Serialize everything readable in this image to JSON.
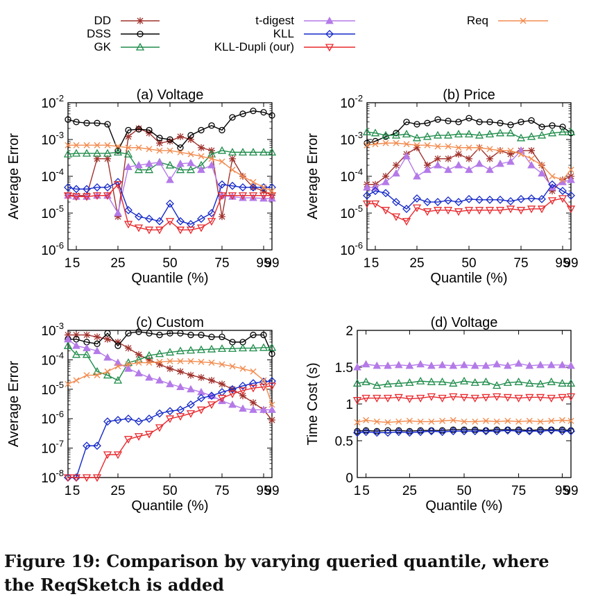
{
  "caption": "Figure 19: Comparison by varying queried quantile, where the ReqSketch is added",
  "legend": [
    {
      "name": "DD",
      "color": "#a0322d",
      "marker": "star"
    },
    {
      "name": "DSS",
      "color": "#000000",
      "marker": "circle"
    },
    {
      "name": "GK",
      "color": "#1e8c4a",
      "marker": "triangle-up"
    },
    {
      "name": "t-digest",
      "color": "#b47ae8",
      "marker": "triangle-up-filled"
    },
    {
      "name": "KLL",
      "color": "#1428c8",
      "marker": "diamond"
    },
    {
      "name": "KLL-Dupli (our)",
      "color": "#e8282d",
      "marker": "triangle-down"
    },
    {
      "name": "Req",
      "color": "#f28c50",
      "marker": "x"
    }
  ],
  "chart_data": [
    {
      "type": "line",
      "title": "(a) Voltage",
      "xlabel": "Quantile (%)",
      "ylabel": "Average Error",
      "yscale": "log",
      "ylim": [
        1e-06,
        0.01
      ],
      "xlim": [
        1,
        99
      ],
      "xticks": [
        1,
        5,
        25,
        50,
        75,
        95,
        99
      ],
      "yticks": [
        "10-6",
        "10-5",
        "10-4",
        "10-3",
        "10-2"
      ],
      "x": [
        1,
        5,
        10,
        15,
        20,
        25,
        30,
        35,
        40,
        45,
        50,
        55,
        60,
        65,
        70,
        75,
        80,
        85,
        90,
        95,
        99
      ],
      "series": [
        {
          "name": "DD",
          "values": [
            3e-05,
            3e-05,
            3e-05,
            0.0003,
            0.0003,
            8e-06,
            0.0012,
            0.002,
            0.0015,
            0.0008,
            0.0009,
            0.0012,
            0.001,
            0.0006,
            0.0005,
            8e-06,
            0.0003,
            0.0001,
            5e-05,
            4e-05,
            3e-05
          ]
        },
        {
          "name": "DSS",
          "values": [
            0.0035,
            0.003,
            0.0028,
            0.0028,
            0.0026,
            0.0005,
            0.0018,
            0.0019,
            0.0018,
            0.0011,
            0.001,
            0.0006,
            0.0013,
            0.0018,
            0.0024,
            0.0018,
            0.004,
            0.005,
            0.006,
            0.0055,
            0.0045
          ]
        },
        {
          "name": "GK",
          "values": [
            0.0004,
            0.00042,
            0.00042,
            0.00042,
            0.00042,
            0.00045,
            0.0004,
            0.00015,
            0.00015,
            0.00024,
            0.0002,
            0.00015,
            0.00015,
            0.0002,
            0.0004,
            0.0005,
            0.00045,
            0.00045,
            0.00045,
            0.00045,
            0.00045
          ]
        },
        {
          "name": "t-digest",
          "values": [
            3e-05,
            2.8e-05,
            2.8e-05,
            3e-05,
            3e-05,
            1e-05,
            0.00018,
            0.0002,
            0.00022,
            0.00024,
            8e-05,
            0.00022,
            0.00023,
            0.00015,
            0.0002,
            3e-05,
            2.8e-05,
            2.6e-05,
            2.6e-05,
            2.5e-05,
            2.5e-05
          ]
        },
        {
          "name": "KLL",
          "values": [
            5e-05,
            4.5e-05,
            4.5e-05,
            5e-05,
            5e-05,
            7e-05,
            1.2e-05,
            8e-06,
            7e-06,
            6e-06,
            1.8e-05,
            6e-06,
            5e-06,
            7e-06,
            1e-05,
            6e-05,
            5.5e-05,
            5e-05,
            5e-05,
            5e-05,
            5e-05
          ]
        },
        {
          "name": "KLL-Dupli (our)",
          "values": [
            3e-05,
            2.8e-05,
            2.8e-05,
            3e-05,
            3e-05,
            6e-05,
            5e-06,
            4e-06,
            3.5e-06,
            3.5e-06,
            6e-06,
            3.5e-06,
            3.5e-06,
            4e-06,
            6e-06,
            3e-05,
            3e-05,
            3e-05,
            3e-05,
            3e-05,
            3e-05
          ]
        },
        {
          "name": "Req",
          "values": [
            0.0007,
            0.0007,
            0.0007,
            0.0007,
            0.0007,
            0.00065,
            0.0006,
            0.0006,
            0.00055,
            0.0005,
            0.0005,
            0.00045,
            0.0004,
            0.00035,
            0.0003,
            0.00025,
            0.00015,
            0.0001,
            7e-05,
            5e-05,
            4e-05
          ]
        }
      ]
    },
    {
      "type": "line",
      "title": "(b) Price",
      "xlabel": "Quantile (%)",
      "ylabel": "Average Error",
      "yscale": "log",
      "ylim": [
        1e-06,
        0.01
      ],
      "xlim": [
        1,
        99
      ],
      "xticks": [
        1,
        5,
        25,
        50,
        75,
        95,
        99
      ],
      "yticks": [
        "10-6",
        "10-5",
        "10-4",
        "10-3",
        "10-2"
      ],
      "x": [
        1,
        5,
        10,
        15,
        20,
        25,
        30,
        35,
        40,
        45,
        50,
        55,
        60,
        65,
        70,
        75,
        80,
        85,
        90,
        95,
        99
      ],
      "series": [
        {
          "name": "DD",
          "values": [
            6e-05,
            6e-05,
            0.0001,
            0.0002,
            0.0004,
            0.0006,
            0.0002,
            0.0003,
            0.0003,
            0.0004,
            0.0003,
            0.0006,
            0.0003,
            0.0005,
            0.0004,
            0.0005,
            0.0005,
            0.0002,
            4e-05,
            8e-05,
            0.0001
          ]
        },
        {
          "name": "DSS",
          "values": [
            0.0008,
            0.0009,
            0.0012,
            0.0015,
            0.003,
            0.0026,
            0.0028,
            0.0035,
            0.0032,
            0.003,
            0.0038,
            0.003,
            0.003,
            0.0028,
            0.0025,
            0.003,
            0.0033,
            0.0022,
            0.0024,
            0.0022,
            0.0015
          ]
        },
        {
          "name": "GK",
          "values": [
            0.0016,
            0.0015,
            0.0013,
            0.0013,
            0.0014,
            0.0011,
            0.0012,
            0.0013,
            0.0013,
            0.0014,
            0.0014,
            0.0013,
            0.0014,
            0.0015,
            0.0015,
            0.0011,
            0.0012,
            0.0013,
            0.0015,
            0.0016,
            0.0016
          ]
        },
        {
          "name": "t-digest",
          "values": [
            5e-05,
            5e-05,
            7e-05,
            0.00012,
            0.00035,
            0.0001,
            0.00015,
            0.0002,
            0.00015,
            0.0002,
            0.00015,
            0.00022,
            0.00015,
            0.00022,
            0.00025,
            0.0005,
            0.0002,
            0.00012,
            5e-05,
            7e-05,
            8e-05
          ]
        },
        {
          "name": "KLL",
          "values": [
            3e-05,
            4e-05,
            3.5e-05,
            2e-05,
            1.3e-05,
            2.5e-05,
            2e-05,
            2e-05,
            2.2e-05,
            2e-05,
            2.4e-05,
            2.3e-05,
            2.3e-05,
            2.3e-05,
            2.1e-05,
            2.4e-05,
            2.5e-05,
            2.4e-05,
            6e-05,
            4e-05,
            3e-05
          ]
        },
        {
          "name": "KLL-Dupli (our)",
          "values": [
            1.8e-05,
            1.8e-05,
            1.2e-05,
            8e-06,
            6e-06,
            1.4e-05,
            1.1e-05,
            1.2e-05,
            1.2e-05,
            1.1e-05,
            1.2e-05,
            1.2e-05,
            1.2e-05,
            1.2e-05,
            1.3e-05,
            1.2e-05,
            1.3e-05,
            1.3e-05,
            2.2e-05,
            2.5e-05,
            1.3e-05
          ]
        },
        {
          "name": "Req",
          "values": [
            0.0007,
            0.00075,
            0.0008,
            0.0008,
            0.00075,
            0.0007,
            0.0007,
            0.00065,
            0.00065,
            0.0006,
            0.0006,
            0.0006,
            0.00055,
            0.0005,
            0.0005,
            0.0004,
            0.0003,
            0.0002,
            0.0001,
            8e-05,
            0.00015
          ]
        }
      ]
    },
    {
      "type": "line",
      "title": "(c) Custom",
      "xlabel": "Quantile (%)",
      "ylabel": "Average Error",
      "yscale": "log",
      "ylim": [
        1e-08,
        0.001
      ],
      "xlim": [
        1,
        99
      ],
      "xticks": [
        1,
        5,
        25,
        50,
        75,
        95,
        99
      ],
      "yticks": [
        "10-8",
        "10-7",
        "10-6",
        "10-5",
        "10-4",
        "10-3"
      ],
      "x": [
        1,
        5,
        10,
        15,
        20,
        25,
        30,
        35,
        40,
        45,
        50,
        55,
        60,
        65,
        70,
        75,
        80,
        85,
        90,
        95,
        99
      ],
      "series": [
        {
          "name": "DD",
          "values": [
            0.0007,
            0.0007,
            0.0007,
            0.0006,
            0.0005,
            0.0004,
            0.00025,
            0.00015,
            0.0001,
            7e-05,
            5e-05,
            4e-05,
            3e-05,
            2.5e-05,
            2e-05,
            1.5e-05,
            1e-05,
            6e-06,
            3.5e-06,
            2e-06,
            9e-07
          ]
        },
        {
          "name": "DSS",
          "values": [
            0.0005,
            0.0005,
            0.0004,
            0.00035,
            0.0008,
            0.0003,
            0.0008,
            0.0009,
            0.0008,
            0.0007,
            0.0008,
            0.0008,
            0.0007,
            0.0007,
            0.0006,
            0.0006,
            0.0004,
            0.0004,
            0.0007,
            0.0007,
            0.00016
          ]
        },
        {
          "name": "GK",
          "values": [
            0.0003,
            0.00015,
            0.00015,
            4e-05,
            3e-05,
            2e-05,
            8e-05,
            0.0001,
            0.00014,
            0.00016,
            0.00018,
            0.0002,
            0.00021,
            0.00022,
            0.00023,
            0.00024,
            0.00024,
            0.00025,
            0.00025,
            0.00026,
            0.00026
          ]
        },
        {
          "name": "t-digest",
          "values": [
            0.0005,
            0.0003,
            0.00025,
            0.0002,
            0.00012,
            8e-05,
            5e-05,
            3.5e-05,
            2.5e-05,
            2e-05,
            1.5e-05,
            1.2e-05,
            1e-05,
            8e-06,
            6e-06,
            4e-06,
            3e-06,
            2.2e-06,
            2e-06,
            2e-06,
            2e-06
          ]
        },
        {
          "name": "KLL",
          "values": [
            1e-08,
            1e-08,
            1.2e-07,
            1.2e-07,
            8e-07,
            9e-07,
            1e-06,
            8e-07,
            1e-06,
            1.5e-06,
            1.8e-06,
            2e-06,
            3e-06,
            5e-06,
            6e-06,
            8e-06,
            1e-05,
            1.3e-05,
            1.6e-05,
            1.8e-05,
            1.9e-05
          ]
        },
        {
          "name": "KLL-Dupli (our)",
          "values": [
            1e-08,
            1e-08,
            1e-08,
            1e-08,
            6e-08,
            6e-08,
            2e-07,
            2.5e-07,
            3e-07,
            5e-07,
            1e-06,
            1.2e-06,
            1.5e-06,
            2e-06,
            3e-06,
            5e-06,
            7e-06,
            9e-06,
            1.1e-05,
            1.2e-05,
            1.3e-05
          ]
        },
        {
          "name": "Req",
          "values": [
            1.5e-05,
            2e-05,
            3e-05,
            3e-05,
            4e-05,
            6e-05,
            7e-05,
            8e-05,
            8e-05,
            8.5e-05,
            9e-05,
            9e-05,
            9e-05,
            8.5e-05,
            8e-05,
            7e-05,
            6e-05,
            5e-05,
            4e-05,
            2e-05,
            3e-06
          ]
        }
      ]
    },
    {
      "type": "line",
      "title": "(d) Voltage",
      "xlabel": "Quantile (%)",
      "ylabel": "Time Cost (s)",
      "yscale": "linear",
      "ylim": [
        0,
        2
      ],
      "xlim": [
        1,
        99
      ],
      "xticks": [
        1,
        5,
        25,
        50,
        75,
        95,
        99
      ],
      "yticks": [
        "0",
        "0.5",
        "1",
        "1.5",
        "2"
      ],
      "x": [
        1,
        5,
        10,
        15,
        20,
        25,
        30,
        35,
        40,
        45,
        50,
        55,
        60,
        65,
        70,
        75,
        80,
        85,
        90,
        95,
        99
      ],
      "series": [
        {
          "name": "t-digest",
          "values": [
            1.5,
            1.54,
            1.52,
            1.52,
            1.53,
            1.52,
            1.54,
            1.52,
            1.53,
            1.52,
            1.53,
            1.52,
            1.52,
            1.54,
            1.52,
            1.55,
            1.52,
            1.53,
            1.53,
            1.53,
            1.52
          ]
        },
        {
          "name": "GK",
          "values": [
            1.28,
            1.3,
            1.25,
            1.27,
            1.28,
            1.29,
            1.31,
            1.3,
            1.3,
            1.28,
            1.31,
            1.29,
            1.3,
            1.25,
            1.29,
            1.3,
            1.28,
            1.27,
            1.3,
            1.28,
            1.28
          ]
        },
        {
          "name": "KLL-Dupli (our)",
          "values": [
            1.05,
            1.08,
            1.08,
            1.08,
            1.09,
            1.07,
            1.08,
            1.1,
            1.08,
            1.1,
            1.09,
            1.08,
            1.09,
            1.1,
            1.09,
            1.08,
            1.09,
            1.09,
            1.08,
            1.09,
            1.1
          ]
        },
        {
          "name": "Req",
          "values": [
            0.75,
            0.78,
            0.76,
            0.75,
            0.76,
            0.77,
            0.76,
            0.76,
            0.77,
            0.78,
            0.76,
            0.76,
            0.77,
            0.76,
            0.77,
            0.76,
            0.77,
            0.76,
            0.77,
            0.78,
            0.77
          ]
        },
        {
          "name": "DSS",
          "values": [
            0.63,
            0.64,
            0.63,
            0.64,
            0.64,
            0.63,
            0.64,
            0.64,
            0.64,
            0.65,
            0.65,
            0.65,
            0.64,
            0.65,
            0.65,
            0.65,
            0.64,
            0.65,
            0.65,
            0.65,
            0.64
          ]
        },
        {
          "name": "KLL",
          "values": [
            0.61,
            0.62,
            0.61,
            0.61,
            0.62,
            0.61,
            0.62,
            0.63,
            0.62,
            0.63,
            0.63,
            0.63,
            0.63,
            0.63,
            0.64,
            0.63,
            0.63,
            0.63,
            0.64,
            0.63,
            0.63
          ]
        }
      ]
    }
  ]
}
